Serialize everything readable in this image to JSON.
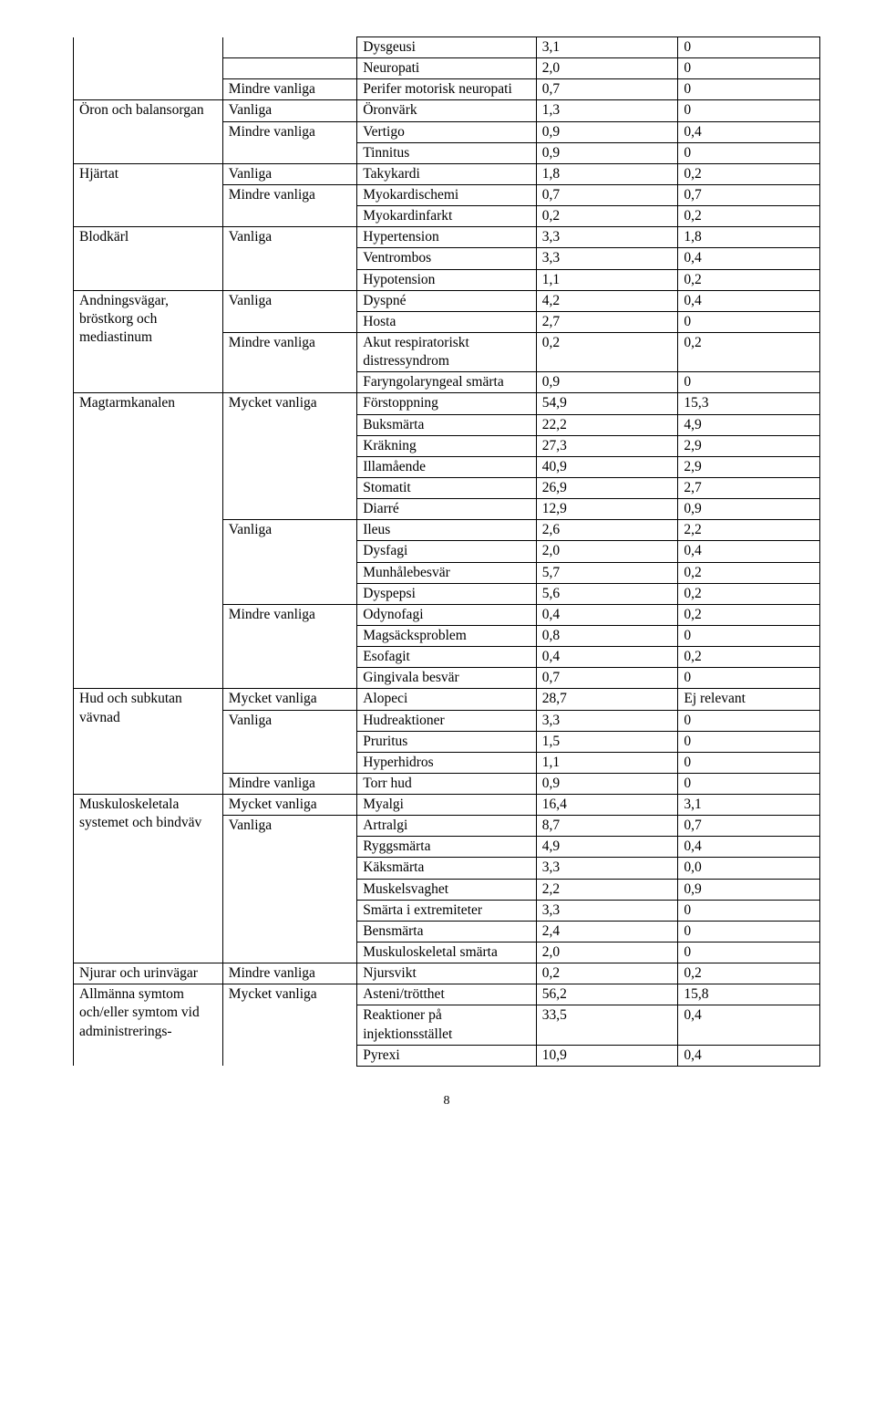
{
  "rows": [
    {
      "c1": {
        "text": "",
        "top": false,
        "bot": false
      },
      "c2": {
        "text": "",
        "top": false,
        "bot": true
      },
      "c3": "Dysgeusi",
      "c4": "3,1",
      "c5": "0"
    },
    {
      "c1": {
        "text": "",
        "top": false,
        "bot": false
      },
      "c2": {
        "text": "",
        "top": true,
        "bot": true
      },
      "c3": "Neuropati",
      "c4": "2,0",
      "c5": "0"
    },
    {
      "c1": {
        "text": "",
        "top": false,
        "bot": true
      },
      "c2": {
        "text": "Mindre vanliga",
        "top": true,
        "bot": true
      },
      "c3": "Perifer motorisk neuropati",
      "c4": "0,7",
      "c5": "0"
    },
    {
      "c1": {
        "text": "Öron och balansorgan",
        "top": true,
        "bot": false,
        "rowspan": 3
      },
      "c2": {
        "text": "Vanliga",
        "top": true,
        "bot": true
      },
      "c3": "Öronvärk",
      "c4": "1,3",
      "c5": "0"
    },
    {
      "c2": {
        "text": "Mindre vanliga",
        "top": true,
        "bot": false
      },
      "c3": "Vertigo",
      "c4": "0,9",
      "c5": "0,4"
    },
    {
      "c2": {
        "text": "",
        "top": false,
        "bot": true
      },
      "c3": "Tinnitus",
      "c4": "0,9",
      "c5": "0"
    },
    {
      "c1": {
        "text": "Hjärtat",
        "top": true,
        "bot": false,
        "rowspan": 3
      },
      "c2": {
        "text": "Vanliga",
        "top": true,
        "bot": true
      },
      "c3": "Takykardi",
      "c4": "1,8",
      "c5": "0,2"
    },
    {
      "c2": {
        "text": "Mindre vanliga",
        "top": true,
        "bot": false
      },
      "c3": "Myokardischemi",
      "c4": "0,7",
      "c5": "0,7"
    },
    {
      "c2": {
        "text": "",
        "top": false,
        "bot": true
      },
      "c3": "Myokardinfarkt",
      "c4": "0,2",
      "c5": "0,2"
    },
    {
      "c1": {
        "text": "Blodkärl",
        "top": true,
        "bot": false,
        "rowspan": 3
      },
      "c2": {
        "text": "Vanliga",
        "top": true,
        "bot": false
      },
      "c3": "Hypertension",
      "c4": "3,3",
      "c5": "1,8"
    },
    {
      "c2": {
        "text": "",
        "top": false,
        "bot": false
      },
      "c3": "Ventrombos",
      "c4": "3,3",
      "c5": "0,4"
    },
    {
      "c2": {
        "text": "",
        "top": false,
        "bot": true
      },
      "c3": "Hypotension",
      "c4": "1,1",
      "c5": "0,2"
    },
    {
      "c1": {
        "text": "Andningsvägar, bröstkorg och mediastinum",
        "top": true,
        "bot": false,
        "rowspan": 4
      },
      "c2": {
        "text": "Vanliga",
        "top": true,
        "bot": false
      },
      "c3": "Dyspné",
      "c4": "4,2",
      "c5": "0,4"
    },
    {
      "c2": {
        "text": "",
        "top": false,
        "bot": true
      },
      "c3": "Hosta",
      "c4": "2,7",
      "c5": "0"
    },
    {
      "c2": {
        "text": "Mindre vanliga",
        "top": true,
        "bot": false
      },
      "c3": "Akut respiratoriskt distressyndrom",
      "c4": "0,2",
      "c5": "0,2"
    },
    {
      "c2": {
        "text": "",
        "top": false,
        "bot": true
      },
      "c3": "Faryngolaryngeal smärta",
      "c4": "0,9",
      "c5": "0"
    },
    {
      "c1": {
        "text": "Magtarmkanalen",
        "top": true,
        "bot": false,
        "rowspan": 14
      },
      "c2": {
        "text": "Mycket vanliga",
        "top": true,
        "bot": false
      },
      "c3": "Förstoppning",
      "c4": "54,9",
      "c5": "15,3"
    },
    {
      "c2": {
        "text": "",
        "top": false,
        "bot": false
      },
      "c3": "Buksmärta",
      "c4": "22,2",
      "c5": "4,9"
    },
    {
      "c2": {
        "text": "",
        "top": false,
        "bot": false
      },
      "c3": "Kräkning",
      "c4": "27,3",
      "c5": "2,9"
    },
    {
      "c2": {
        "text": "",
        "top": false,
        "bot": false
      },
      "c3": "Illamående",
      "c4": "40,9",
      "c5": "2,9"
    },
    {
      "c2": {
        "text": "",
        "top": false,
        "bot": false
      },
      "c3": "Stomatit",
      "c4": "26,9",
      "c5": "2,7"
    },
    {
      "c2": {
        "text": "",
        "top": false,
        "bot": true
      },
      "c3": "Diarré",
      "c4": "12,9",
      "c5": "0,9"
    },
    {
      "c2": {
        "text": "Vanliga",
        "top": true,
        "bot": false
      },
      "c3": "Ileus",
      "c4": "2,6",
      "c5": "2,2"
    },
    {
      "c2": {
        "text": "",
        "top": false,
        "bot": false
      },
      "c3": "Dysfagi",
      "c4": "2,0",
      "c5": "0,4"
    },
    {
      "c2": {
        "text": "",
        "top": false,
        "bot": false
      },
      "c3": "Munhålebesvär",
      "c4": "5,7",
      "c5": "0,2"
    },
    {
      "c2": {
        "text": "",
        "top": false,
        "bot": true
      },
      "c3": "Dyspepsi",
      "c4": "5,6",
      "c5": "0,2"
    },
    {
      "c2": {
        "text": "Mindre vanliga",
        "top": true,
        "bot": false
      },
      "c3": "Odynofagi",
      "c4": "0,4",
      "c5": "0,2"
    },
    {
      "c2": {
        "text": "",
        "top": false,
        "bot": false
      },
      "c3": "Magsäcksproblem",
      "c4": "0,8",
      "c5": "0"
    },
    {
      "c2": {
        "text": "",
        "top": false,
        "bot": false
      },
      "c3": "Esofagit",
      "c4": "0,4",
      "c5": "0,2"
    },
    {
      "c2": {
        "text": "",
        "top": false,
        "bot": true
      },
      "c3": "Gingivala besvär",
      "c4": "0,7",
      "c5": "0"
    },
    {
      "c1": {
        "text": "Hud och subkutan vävnad",
        "top": true,
        "bot": false,
        "rowspan": 5
      },
      "c2": {
        "text": "Mycket vanliga",
        "top": true,
        "bot": true
      },
      "c3": "Alopeci",
      "c4": "28,7",
      "c5": "Ej relevant"
    },
    {
      "c2": {
        "text": "Vanliga",
        "top": true,
        "bot": false
      },
      "c3": "Hudreaktioner",
      "c4": "3,3",
      "c5": "0"
    },
    {
      "c2": {
        "text": "",
        "top": false,
        "bot": false
      },
      "c3": "Pruritus",
      "c4": "1,5",
      "c5": "0"
    },
    {
      "c2": {
        "text": "",
        "top": false,
        "bot": true
      },
      "c3": "Hyperhidros",
      "c4": "1,1",
      "c5": "0"
    },
    {
      "c2": {
        "text": "Mindre vanliga",
        "top": true,
        "bot": true
      },
      "c3": "Torr hud",
      "c4": "0,9",
      "c5": "0"
    },
    {
      "c1": {
        "text": "Muskuloskeletala systemet och bindväv",
        "top": true,
        "bot": false,
        "rowspan": 8
      },
      "c2": {
        "text": "Mycket vanliga",
        "top": true,
        "bot": true
      },
      "c3": "Myalgi",
      "c4": "16,4",
      "c5": "3,1"
    },
    {
      "c2": {
        "text": "Vanliga",
        "top": true,
        "bot": false
      },
      "c3": "Artralgi",
      "c4": "8,7",
      "c5": "0,7"
    },
    {
      "c2": {
        "text": "",
        "top": false,
        "bot": false
      },
      "c3": "Ryggsmärta",
      "c4": "4,9",
      "c5": "0,4"
    },
    {
      "c2": {
        "text": "",
        "top": false,
        "bot": false
      },
      "c3": "Käksmärta",
      "c4": "3,3",
      "c5": "0,0"
    },
    {
      "c2": {
        "text": "",
        "top": false,
        "bot": false
      },
      "c3": "Muskelsvaghet",
      "c4": "2,2",
      "c5": "0,9"
    },
    {
      "c2": {
        "text": "",
        "top": false,
        "bot": false
      },
      "c3": "Smärta i extremiteter",
      "c4": "3,3",
      "c5": "0"
    },
    {
      "c2": {
        "text": "",
        "top": false,
        "bot": false
      },
      "c3": "Bensmärta",
      "c4": "2,4",
      "c5": "0"
    },
    {
      "c2": {
        "text": "",
        "top": false,
        "bot": true
      },
      "c3": "Muskuloskeletal smärta",
      "c4": "2,0",
      "c5": "0"
    },
    {
      "c1": {
        "text": "Njurar och urinvägar",
        "top": true,
        "bot": true
      },
      "c2": {
        "text": "Mindre vanliga",
        "top": true,
        "bot": true
      },
      "c3": "Njursvikt",
      "c4": "0,2",
      "c5": "0,2"
    },
    {
      "c1": {
        "text": "Allmänna symtom och/eller symtom vid administrerings-",
        "top": true,
        "bot": false,
        "rowspan": 3
      },
      "c2": {
        "text": "Mycket vanliga",
        "top": true,
        "bot": false
      },
      "c3": "Asteni/trötthet",
      "c4": "56,2",
      "c5": "15,8"
    },
    {
      "c2": {
        "text": "",
        "top": false,
        "bot": false
      },
      "c3": "Reaktioner på injektionsstället",
      "c4": "33,5",
      "c5": "0,4"
    },
    {
      "c2": {
        "text": "",
        "top": false,
        "bot": false
      },
      "c3": "Pyrexi",
      "c4": "10,9",
      "c5": "0,4"
    }
  ],
  "page_number": "8"
}
